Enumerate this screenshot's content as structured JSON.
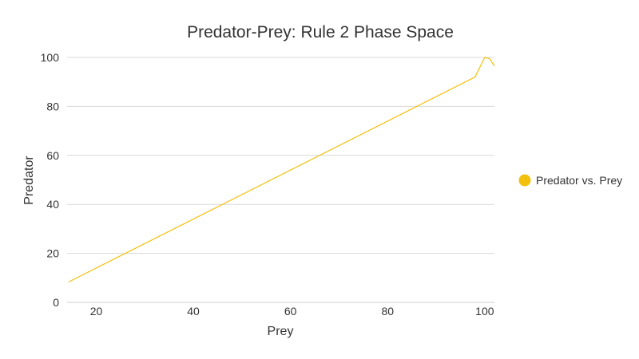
{
  "chart_data": {
    "type": "line",
    "title": "Predator-Prey: Rule 2 Phase Space",
    "xlabel": "Prey",
    "ylabel": "Predator",
    "xlim": [
      14,
      102
    ],
    "ylim": [
      0,
      100
    ],
    "x_ticks": [
      20,
      40,
      60,
      80,
      100
    ],
    "y_ticks": [
      0,
      20,
      40,
      60,
      80,
      100
    ],
    "grid": true,
    "legend_position": "right",
    "series": [
      {
        "name": "Predator vs. Prey",
        "color": "#f2c10d",
        "points": [
          [
            14.3,
            8.3
          ],
          [
            98,
            92
          ],
          [
            100,
            100
          ],
          [
            101,
            99.5
          ],
          [
            102,
            96.5
          ]
        ]
      }
    ]
  }
}
